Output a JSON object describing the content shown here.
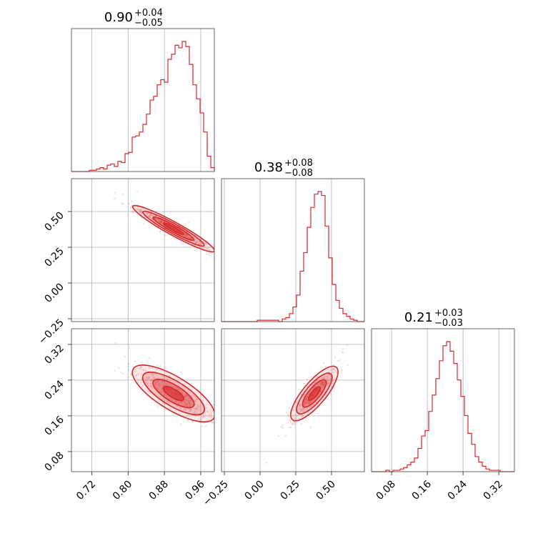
{
  "chart_data": {
    "type": "corner",
    "color": "#d62728",
    "grid": true,
    "params": [
      {
        "index": 0,
        "title": {
          "value": "0.90",
          "plus": "+0.04",
          "minus": "−0.05"
        },
        "range": [
          0.675,
          0.99
        ],
        "ticks": [
          0.72,
          0.8,
          0.88,
          0.96
        ],
        "tick_labels": [
          "0.72",
          "0.80",
          "0.88",
          "0.96"
        ],
        "hist": [
          0,
          0,
          0,
          0,
          0,
          1,
          1,
          2,
          3,
          2,
          5,
          6,
          4,
          8,
          7,
          14,
          15,
          27,
          28,
          31,
          37,
          45,
          56,
          59,
          68,
          72,
          70,
          88,
          92,
          99,
          97,
          102,
          98,
          84,
          68,
          57,
          46,
          31,
          12,
          3
        ]
      },
      {
        "index": 1,
        "title": {
          "value": "0.38",
          "plus": "+0.08",
          "minus": "−0.08"
        },
        "range": [
          -0.27,
          0.73
        ],
        "ticks": [
          -0.25,
          0.0,
          0.25,
          0.5
        ],
        "tick_labels": [
          "−0.25",
          "0.00",
          "0.25",
          "0.50"
        ],
        "hist": [
          0,
          0,
          0,
          0,
          0,
          0,
          0,
          0,
          0,
          0,
          1,
          1,
          1,
          1,
          1,
          1,
          0,
          2,
          3,
          6,
          11,
          20,
          38,
          52,
          71,
          86,
          96,
          98,
          95,
          72,
          48,
          28,
          16,
          10,
          6,
          4,
          2,
          1,
          0,
          0
        ]
      },
      {
        "index": 2,
        "title": {
          "value": "0.21",
          "plus": "+0.03",
          "minus": "−0.03"
        },
        "range": [
          0.035,
          0.355
        ],
        "ticks": [
          0.08,
          0.16,
          0.24,
          0.32
        ],
        "tick_labels": [
          "0.08",
          "0.16",
          "0.24",
          "0.32"
        ],
        "hist": [
          0,
          0,
          0,
          0,
          1,
          0,
          1,
          1,
          2,
          3,
          5,
          7,
          10,
          17,
          26,
          30,
          44,
          56,
          68,
          81,
          92,
          95,
          88,
          79,
          67,
          55,
          41,
          28,
          20,
          11,
          7,
          4,
          2,
          1,
          1,
          1,
          0,
          0,
          0,
          0
        ]
      }
    ],
    "correlations": [
      {
        "x": 0,
        "y": 1,
        "mean": [
          0.9,
          0.38
        ],
        "sd": [
          0.045,
          0.08
        ],
        "rho": -0.97
      },
      {
        "x": 0,
        "y": 2,
        "mean": [
          0.9,
          0.21
        ],
        "sd": [
          0.045,
          0.03
        ],
        "rho": -0.85
      },
      {
        "x": 1,
        "y": 2,
        "mean": [
          0.38,
          0.21
        ],
        "sd": [
          0.08,
          0.03
        ],
        "rho": 0.88
      }
    ]
  }
}
